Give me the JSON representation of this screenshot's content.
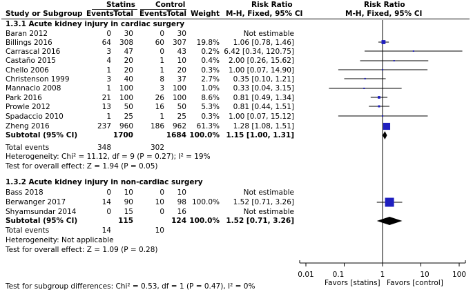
{
  "header": {
    "statins": "Statins",
    "control": "Control",
    "risk_ratio": "Risk Ratio",
    "risk_ratio_right": "Risk Ratio",
    "study": "Study or Subgroup",
    "events1": "Events",
    "total1": "Total",
    "events2": "Events",
    "total2": "Total",
    "weight": "Weight",
    "method": "M-H, Fixed, 95% CI",
    "method_right": "M-H, Fixed, 95% CI"
  },
  "subgroups": [
    {
      "title": "1.3.1 Acute kidney injury in cardiac surgery",
      "studies": [
        {
          "name": "Baran 2012",
          "e1": "0",
          "t1": "30",
          "e2": "0",
          "t2": "30",
          "weight": "",
          "ci": "Not estimable"
        },
        {
          "name": "Billings 2016",
          "e1": "64",
          "t1": "308",
          "e2": "60",
          "t2": "307",
          "weight": "19.8%",
          "ci": "1.06 [0.78, 1.46]"
        },
        {
          "name": "Carrascal 2016",
          "e1": "3",
          "t1": "47",
          "e2": "0",
          "t2": "43",
          "weight": "0.2%",
          "ci": "6.42 [0.34, 120.75]"
        },
        {
          "name": "Castaño 2015",
          "e1": "4",
          "t1": "20",
          "e2": "1",
          "t2": "10",
          "weight": "0.4%",
          "ci": "2.00 [0.26, 15.62]"
        },
        {
          "name": "Chello 2006",
          "e1": "1",
          "t1": "20",
          "e2": "1",
          "t2": "20",
          "weight": "0.3%",
          "ci": "1.00 [0.07, 14.90]"
        },
        {
          "name": "Christenson 1999",
          "e1": "3",
          "t1": "40",
          "e2": "8",
          "t2": "37",
          "weight": "2.7%",
          "ci": "0.35 [0.10, 1.21]"
        },
        {
          "name": "Mannacio 2008",
          "e1": "1",
          "t1": "100",
          "e2": "3",
          "t2": "100",
          "weight": "1.0%",
          "ci": "0.33 [0.04, 3.15]"
        },
        {
          "name": "Park 2016",
          "e1": "21",
          "t1": "100",
          "e2": "26",
          "t2": "100",
          "weight": "8.6%",
          "ci": "0.81 [0.49, 1.34]"
        },
        {
          "name": "Prowle 2012",
          "e1": "13",
          "t1": "50",
          "e2": "16",
          "t2": "50",
          "weight": "5.3%",
          "ci": "0.81 [0.44, 1.51]"
        },
        {
          "name": "Spadaccio 2010",
          "e1": "1",
          "t1": "25",
          "e2": "1",
          "t2": "25",
          "weight": "0.3%",
          "ci": "1.00 [0.07, 15.12]"
        },
        {
          "name": "Zheng 2016",
          "e1": "237",
          "t1": "960",
          "e2": "186",
          "t2": "962",
          "weight": "61.3%",
          "ci": "1.28 [1.08, 1.51]"
        }
      ],
      "subtotal": {
        "label": "Subtotal (95% CI)",
        "t1": "1700",
        "t2": "1684",
        "weight": "100.0%",
        "ci": "1.15 [1.00, 1.31]"
      },
      "total_events": {
        "label": "Total events",
        "e1": "348",
        "e2": "302"
      },
      "heterogeneity": "Heterogeneity: Chi² = 11.12, df = 9 (P = 0.27); I² = 19%",
      "overall": "Test for overall effect: Z = 1.94 (P = 0.05)"
    },
    {
      "title": "1.3.2 Acute kidney injury in non-cardiac surgery",
      "studies": [
        {
          "name": "Bass 2018",
          "e1": "0",
          "t1": "10",
          "e2": "0",
          "t2": "10",
          "weight": "",
          "ci": "Not estimable"
        },
        {
          "name": "Berwanger 2017",
          "e1": "14",
          "t1": "90",
          "e2": "10",
          "t2": "98",
          "weight": "100.0%",
          "ci": "1.52 [0.71, 3.26]"
        },
        {
          "name": "Shyamsundar 2014",
          "e1": "0",
          "t1": "15",
          "e2": "0",
          "t2": "16",
          "weight": "",
          "ci": "Not estimable"
        }
      ],
      "subtotal": {
        "label": "Subtotal (95% CI)",
        "t1": "115",
        "t2": "124",
        "weight": "100.0%",
        "ci": "1.52 [0.71, 3.26]"
      },
      "total_events": {
        "label": "Total events",
        "e1": "14",
        "e2": "10"
      },
      "heterogeneity": "Heterogeneity: Not applicable",
      "overall": "Test for overall effect: Z = 1.09 (P = 0.28)"
    }
  ],
  "subgroup_test": "Test for subgroup differences: Chi² = 0.53, df = 1 (P = 0.47), I² = 0%",
  "axis": {
    "ticks": [
      "0.01",
      "0.1",
      "1",
      "10",
      "100"
    ],
    "favors_left": "Favors [statins]",
    "favors_right": "Favors [control]"
  },
  "colors": {
    "marker": "#1f1fbf",
    "diamond": "#000000",
    "line": "#000000"
  },
  "chart_data": {
    "type": "forest",
    "scale": "log",
    "xlim": [
      0.01,
      100
    ],
    "xticks": [
      0.01,
      0.1,
      1,
      10,
      100
    ],
    "reference_line": 1,
    "xlabel_left": "Favors [statins]",
    "xlabel_right": "Favors [control]",
    "estimates": [
      {
        "study": "Baran 2012",
        "rr": null,
        "lo": null,
        "hi": null,
        "weight": null
      },
      {
        "study": "Billings 2016",
        "rr": 1.06,
        "lo": 0.78,
        "hi": 1.46,
        "weight": 19.8
      },
      {
        "study": "Carrascal 2016",
        "rr": 6.42,
        "lo": 0.34,
        "hi": 120.75,
        "weight": 0.2
      },
      {
        "study": "Castaño 2015",
        "rr": 2.0,
        "lo": 0.26,
        "hi": 15.62,
        "weight": 0.4
      },
      {
        "study": "Chello 2006",
        "rr": 1.0,
        "lo": 0.07,
        "hi": 14.9,
        "weight": 0.3
      },
      {
        "study": "Christenson 1999",
        "rr": 0.35,
        "lo": 0.1,
        "hi": 1.21,
        "weight": 2.7
      },
      {
        "study": "Mannacio 2008",
        "rr": 0.33,
        "lo": 0.04,
        "hi": 3.15,
        "weight": 1.0
      },
      {
        "study": "Park 2016",
        "rr": 0.81,
        "lo": 0.49,
        "hi": 1.34,
        "weight": 8.6
      },
      {
        "study": "Prowle 2012",
        "rr": 0.81,
        "lo": 0.44,
        "hi": 1.51,
        "weight": 5.3
      },
      {
        "study": "Spadaccio 2010",
        "rr": 1.0,
        "lo": 0.07,
        "hi": 15.12,
        "weight": 0.3
      },
      {
        "study": "Zheng 2016",
        "rr": 1.28,
        "lo": 1.08,
        "hi": 1.51,
        "weight": 61.3
      },
      {
        "study": "Subtotal cardiac",
        "rr": 1.15,
        "lo": 1.0,
        "hi": 1.31,
        "weight": 100.0,
        "diamond": true
      },
      {
        "study": "Bass 2018",
        "rr": null,
        "lo": null,
        "hi": null,
        "weight": null
      },
      {
        "study": "Berwanger 2017",
        "rr": 1.52,
        "lo": 0.71,
        "hi": 3.26,
        "weight": 100.0
      },
      {
        "study": "Shyamsundar 2014",
        "rr": null,
        "lo": null,
        "hi": null,
        "weight": null
      },
      {
        "study": "Subtotal non-cardiac",
        "rr": 1.52,
        "lo": 0.71,
        "hi": 3.26,
        "weight": 100.0,
        "diamond": true
      }
    ]
  }
}
